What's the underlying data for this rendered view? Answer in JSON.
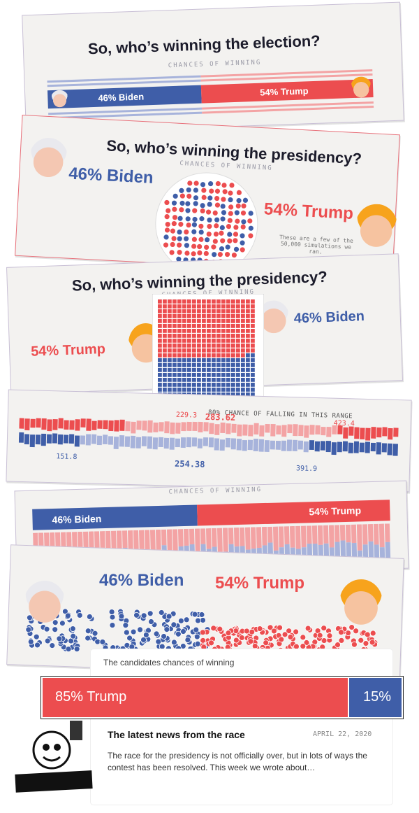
{
  "card1": {
    "title": "So, who’s winning the election?",
    "kicker": "CHANCES OF WINNING",
    "biden": "46%  Biden",
    "trump": "54%  Trump"
  },
  "card2": {
    "title": "So, who’s winning the presidency?",
    "kicker": "CHANCES OF WINNING",
    "biden": "46% Biden",
    "trump": "54% Trump",
    "note": "These are a few of the 50,000 simulations we ran."
  },
  "card3": {
    "title": "So, who’s winning the presidency?",
    "kicker": "CHANCES OF WINNING",
    "trump": "54% Trump",
    "biden": "46% Biden"
  },
  "card4": {
    "range_label": "80% CHANCE OF FALLING IN THIS RANGE",
    "red_values": [
      "229.3",
      "283.62",
      "423.4"
    ],
    "blue_values": [
      "151.8",
      "254.38",
      "391.9"
    ]
  },
  "card5": {
    "kicker": "CHANCES OF WINNING",
    "biden": "46% Biden",
    "trump": "54% Trump"
  },
  "card6": {
    "biden": "46% Biden",
    "trump": "54% Trump"
  },
  "news": {
    "caption": "The candidates chances of winning",
    "trump": "85%  Trump",
    "trump_share": 0.85,
    "other": "15%",
    "other_share": 0.15,
    "headline": "The latest news from the race",
    "date": "APRIL 22, 2020",
    "body": "The race for the presidency is not officially over, but in lots of ways the contest has been resolved. This week we wrote about…"
  },
  "colors": {
    "red": "#ec4d4f",
    "blue": "#3f5ea8",
    "light_red": "#f3a3a4",
    "light_blue": "#a7b3db"
  }
}
